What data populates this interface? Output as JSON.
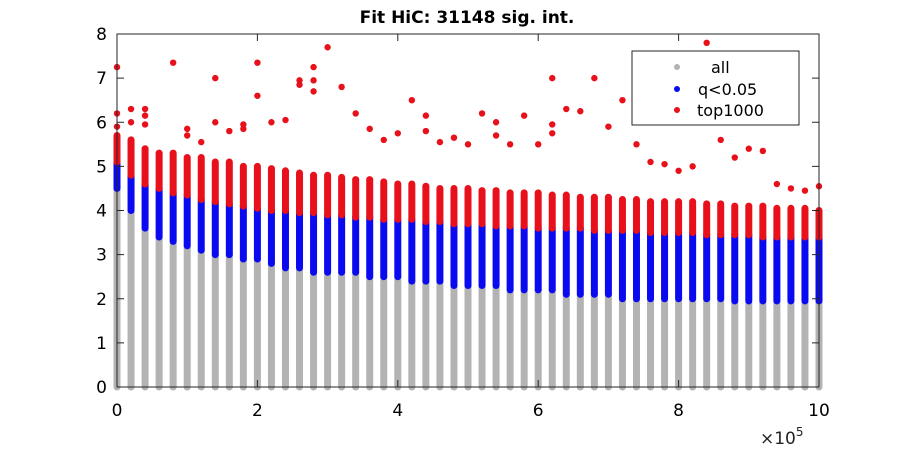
{
  "chart_data": {
    "type": "scatter",
    "title": "Fit HiC: 31148 sig. int.",
    "xlabel": "",
    "ylabel": "",
    "xlim": [
      0,
      1000000
    ],
    "ylim": [
      0,
      8
    ],
    "x_ticks": [
      0,
      200000,
      400000,
      600000,
      800000,
      1000000
    ],
    "x_tick_labels": [
      "0",
      "2",
      "4",
      "6",
      "8",
      "10"
    ],
    "x_exponent_label": "×10",
    "x_exponent_power": "5",
    "y_ticks": [
      0,
      1,
      2,
      3,
      4,
      5,
      6,
      7,
      8
    ],
    "y_tick_labels": [
      "0",
      "1",
      "2",
      "3",
      "4",
      "5",
      "6",
      "7",
      "8"
    ],
    "grid": false,
    "legend_position": "top-right",
    "bin_step": 20000,
    "series": [
      {
        "name": "all",
        "color": "#b3b3b3",
        "column_ranges": [
          [
            0,
            0,
            5.2
          ],
          [
            20000,
            0,
            4.0
          ],
          [
            40000,
            0,
            3.6
          ],
          [
            60000,
            0,
            3.4
          ],
          [
            80000,
            0,
            3.3
          ],
          [
            100000,
            0,
            3.2
          ],
          [
            120000,
            0,
            3.1
          ],
          [
            140000,
            0,
            3.0
          ],
          [
            160000,
            0,
            3.0
          ],
          [
            180000,
            0,
            2.9
          ],
          [
            200000,
            0,
            2.9
          ],
          [
            220000,
            0,
            2.8
          ],
          [
            240000,
            0,
            2.7
          ],
          [
            260000,
            0,
            2.7
          ],
          [
            280000,
            0,
            2.6
          ],
          [
            300000,
            0,
            2.6
          ],
          [
            320000,
            0,
            2.6
          ],
          [
            340000,
            0,
            2.6
          ],
          [
            360000,
            0,
            2.5
          ],
          [
            380000,
            0,
            2.5
          ],
          [
            400000,
            0,
            2.5
          ],
          [
            420000,
            0,
            2.4
          ],
          [
            440000,
            0,
            2.4
          ],
          [
            460000,
            0,
            2.4
          ],
          [
            480000,
            0,
            2.3
          ],
          [
            500000,
            0,
            2.3
          ],
          [
            520000,
            0,
            2.3
          ],
          [
            540000,
            0,
            2.3
          ],
          [
            560000,
            0,
            2.2
          ],
          [
            580000,
            0,
            2.2
          ],
          [
            600000,
            0,
            2.2
          ],
          [
            620000,
            0,
            2.2
          ],
          [
            640000,
            0,
            2.1
          ],
          [
            660000,
            0,
            2.1
          ],
          [
            680000,
            0,
            2.1
          ],
          [
            700000,
            0,
            2.1
          ],
          [
            720000,
            0,
            2.0
          ],
          [
            740000,
            0,
            2.0
          ],
          [
            760000,
            0,
            2.0
          ],
          [
            780000,
            0,
            2.0
          ],
          [
            800000,
            0,
            2.0
          ],
          [
            820000,
            0,
            2.0
          ],
          [
            840000,
            0,
            2.0
          ],
          [
            860000,
            0,
            2.0
          ],
          [
            880000,
            0,
            1.9
          ],
          [
            900000,
            0,
            1.9
          ],
          [
            920000,
            0,
            1.9
          ],
          [
            940000,
            0,
            1.9
          ],
          [
            960000,
            0,
            1.9
          ],
          [
            980000,
            0,
            1.9
          ],
          [
            1000000,
            0,
            1.9
          ]
        ]
      },
      {
        "name": "q<0.05",
        "color": "#0a0af0",
        "column_ranges": [
          [
            0,
            4.5,
            5.1
          ],
          [
            20000,
            4.0,
            4.8
          ],
          [
            40000,
            3.6,
            4.6
          ],
          [
            60000,
            3.4,
            4.5
          ],
          [
            80000,
            3.3,
            4.4
          ],
          [
            100000,
            3.2,
            4.35
          ],
          [
            120000,
            3.1,
            4.25
          ],
          [
            140000,
            3.0,
            4.2
          ],
          [
            160000,
            3.0,
            4.15
          ],
          [
            180000,
            2.9,
            4.1
          ],
          [
            200000,
            2.9,
            4.05
          ],
          [
            220000,
            2.8,
            4.0
          ],
          [
            240000,
            2.7,
            4.0
          ],
          [
            260000,
            2.7,
            3.95
          ],
          [
            280000,
            2.6,
            3.95
          ],
          [
            300000,
            2.6,
            3.9
          ],
          [
            320000,
            2.6,
            3.9
          ],
          [
            340000,
            2.6,
            3.85
          ],
          [
            360000,
            2.5,
            3.85
          ],
          [
            380000,
            2.5,
            3.8
          ],
          [
            400000,
            2.5,
            3.8
          ],
          [
            420000,
            2.4,
            3.8
          ],
          [
            440000,
            2.4,
            3.75
          ],
          [
            460000,
            2.4,
            3.75
          ],
          [
            480000,
            2.3,
            3.7
          ],
          [
            500000,
            2.3,
            3.7
          ],
          [
            520000,
            2.3,
            3.7
          ],
          [
            540000,
            2.3,
            3.65
          ],
          [
            560000,
            2.2,
            3.65
          ],
          [
            580000,
            2.2,
            3.65
          ],
          [
            600000,
            2.2,
            3.6
          ],
          [
            620000,
            2.2,
            3.6
          ],
          [
            640000,
            2.1,
            3.6
          ],
          [
            660000,
            2.1,
            3.6
          ],
          [
            680000,
            2.1,
            3.55
          ],
          [
            700000,
            2.1,
            3.55
          ],
          [
            720000,
            2.0,
            3.55
          ],
          [
            740000,
            2.0,
            3.55
          ],
          [
            760000,
            2.0,
            3.5
          ],
          [
            780000,
            2.0,
            3.5
          ],
          [
            800000,
            2.0,
            3.5
          ],
          [
            820000,
            2.0,
            3.5
          ],
          [
            840000,
            2.0,
            3.45
          ],
          [
            860000,
            2.0,
            3.45
          ],
          [
            880000,
            1.95,
            3.45
          ],
          [
            900000,
            1.95,
            3.45
          ],
          [
            920000,
            1.95,
            3.4
          ],
          [
            940000,
            1.95,
            3.4
          ],
          [
            960000,
            1.95,
            3.4
          ],
          [
            980000,
            1.95,
            3.4
          ],
          [
            1000000,
            1.95,
            3.4
          ]
        ]
      },
      {
        "name": "top1000",
        "color": "#e8101a",
        "column_ranges": [
          [
            0,
            5.1,
            5.7
          ],
          [
            20000,
            4.8,
            5.6
          ],
          [
            40000,
            4.6,
            5.4
          ],
          [
            60000,
            4.5,
            5.3
          ],
          [
            80000,
            4.4,
            5.3
          ],
          [
            100000,
            4.35,
            5.2
          ],
          [
            120000,
            4.25,
            5.2
          ],
          [
            140000,
            4.2,
            5.1
          ],
          [
            160000,
            4.15,
            5.1
          ],
          [
            180000,
            4.1,
            5.0
          ],
          [
            200000,
            4.05,
            5.0
          ],
          [
            220000,
            4.0,
            4.95
          ],
          [
            240000,
            4.0,
            4.9
          ],
          [
            260000,
            3.95,
            4.85
          ],
          [
            280000,
            3.95,
            4.8
          ],
          [
            300000,
            3.9,
            4.8
          ],
          [
            320000,
            3.9,
            4.75
          ],
          [
            340000,
            3.85,
            4.7
          ],
          [
            360000,
            3.85,
            4.7
          ],
          [
            380000,
            3.8,
            4.65
          ],
          [
            400000,
            3.8,
            4.6
          ],
          [
            420000,
            3.8,
            4.6
          ],
          [
            440000,
            3.75,
            4.55
          ],
          [
            460000,
            3.75,
            4.5
          ],
          [
            480000,
            3.7,
            4.5
          ],
          [
            500000,
            3.7,
            4.5
          ],
          [
            520000,
            3.7,
            4.45
          ],
          [
            540000,
            3.65,
            4.45
          ],
          [
            560000,
            3.65,
            4.4
          ],
          [
            580000,
            3.65,
            4.4
          ],
          [
            600000,
            3.6,
            4.4
          ],
          [
            620000,
            3.6,
            4.35
          ],
          [
            640000,
            3.6,
            4.35
          ],
          [
            660000,
            3.6,
            4.3
          ],
          [
            680000,
            3.55,
            4.3
          ],
          [
            700000,
            3.55,
            4.3
          ],
          [
            720000,
            3.55,
            4.25
          ],
          [
            740000,
            3.55,
            4.25
          ],
          [
            760000,
            3.5,
            4.2
          ],
          [
            780000,
            3.5,
            4.2
          ],
          [
            800000,
            3.5,
            4.2
          ],
          [
            820000,
            3.5,
            4.2
          ],
          [
            840000,
            3.45,
            4.15
          ],
          [
            860000,
            3.45,
            4.15
          ],
          [
            880000,
            3.45,
            4.1
          ],
          [
            900000,
            3.45,
            4.1
          ],
          [
            920000,
            3.4,
            4.1
          ],
          [
            940000,
            3.4,
            4.05
          ],
          [
            960000,
            3.4,
            4.05
          ],
          [
            980000,
            3.4,
            4.05
          ],
          [
            1000000,
            3.4,
            4.0
          ]
        ],
        "outliers": [
          [
            0,
            7.25
          ],
          [
            0,
            6.2
          ],
          [
            0,
            5.9
          ],
          [
            20000,
            6.3
          ],
          [
            20000,
            6.0
          ],
          [
            40000,
            6.3
          ],
          [
            40000,
            6.15
          ],
          [
            40000,
            5.95
          ],
          [
            80000,
            7.35
          ],
          [
            100000,
            5.85
          ],
          [
            100000,
            5.7
          ],
          [
            120000,
            5.55
          ],
          [
            140000,
            7.0
          ],
          [
            140000,
            6.0
          ],
          [
            160000,
            5.8
          ],
          [
            180000,
            5.95
          ],
          [
            180000,
            5.85
          ],
          [
            200000,
            7.35
          ],
          [
            200000,
            6.6
          ],
          [
            220000,
            6.0
          ],
          [
            240000,
            6.05
          ],
          [
            260000,
            6.95
          ],
          [
            260000,
            6.85
          ],
          [
            280000,
            7.25
          ],
          [
            280000,
            6.95
          ],
          [
            280000,
            6.7
          ],
          [
            300000,
            7.7
          ],
          [
            320000,
            6.8
          ],
          [
            340000,
            6.2
          ],
          [
            360000,
            5.85
          ],
          [
            380000,
            5.6
          ],
          [
            400000,
            5.75
          ],
          [
            420000,
            6.5
          ],
          [
            440000,
            6.15
          ],
          [
            440000,
            5.8
          ],
          [
            460000,
            5.55
          ],
          [
            480000,
            5.65
          ],
          [
            500000,
            5.5
          ],
          [
            520000,
            6.2
          ],
          [
            540000,
            6.0
          ],
          [
            540000,
            5.7
          ],
          [
            560000,
            5.5
          ],
          [
            580000,
            6.15
          ],
          [
            600000,
            5.5
          ],
          [
            620000,
            7.0
          ],
          [
            620000,
            5.95
          ],
          [
            620000,
            5.75
          ],
          [
            640000,
            6.3
          ],
          [
            660000,
            6.25
          ],
          [
            680000,
            7.0
          ],
          [
            700000,
            5.9
          ],
          [
            720000,
            6.5
          ],
          [
            740000,
            5.5
          ],
          [
            760000,
            5.1
          ],
          [
            780000,
            5.05
          ],
          [
            800000,
            4.9
          ],
          [
            820000,
            5.0
          ],
          [
            840000,
            7.8
          ],
          [
            860000,
            5.6
          ],
          [
            880000,
            5.2
          ],
          [
            900000,
            5.4
          ],
          [
            920000,
            5.35
          ],
          [
            940000,
            4.6
          ],
          [
            960000,
            4.5
          ],
          [
            980000,
            4.45
          ],
          [
            1000000,
            4.55
          ]
        ]
      }
    ]
  }
}
